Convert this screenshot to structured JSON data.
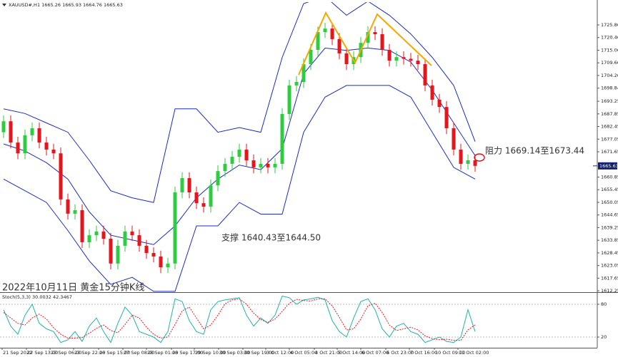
{
  "chart_data": [
    {
      "type": "candlestick",
      "title": "XAUUSD#,H1  1665.26 1665.93 1664.76 1665.63",
      "annotations": [
        "阻力 1669.14至1673.44",
        "支撑 1640.43至1644.50",
        "2022年10月11日 黄金15分钟K线"
      ],
      "x": [
        0,
        1,
        2,
        3,
        4,
        5,
        6,
        7,
        8,
        9,
        10,
        11,
        12,
        13,
        14,
        15,
        16,
        17,
        18,
        19,
        20,
        21,
        22,
        23,
        24,
        25,
        26,
        27,
        28,
        29,
        30,
        31,
        32,
        33,
        34,
        35,
        36,
        37,
        38,
        39,
        40,
        41,
        42,
        43,
        44,
        45,
        46,
        47,
        48,
        49,
        50,
        51,
        52,
        53,
        54,
        55,
        56,
        57,
        58,
        59,
        60,
        61,
        62,
        63,
        64,
        65,
        66
      ],
      "open": [
        1680,
        1684.7,
        1675.6,
        1671,
        1678.7,
        1681.7,
        1675.6,
        1672.6,
        1671,
        1651.3,
        1645.2,
        1646.7,
        1633,
        1636,
        1637.6,
        1634.5,
        1623.9,
        1631.5,
        1637.6,
        1636,
        1631.5,
        1628.4,
        1626.9,
        1622.3,
        1623.9,
        1654.3,
        1660.4,
        1654.3,
        1649.7,
        1648.2,
        1657.3,
        1663.4,
        1666.5,
        1669.5,
        1672.6,
        1668,
        1665,
        1666.5,
        1665,
        1666.5,
        1687.8,
        1700,
        1701.5,
        1709.1,
        1715.2,
        1722.8,
        1724.3,
        1719.8,
        1713.7,
        1709.1,
        1712.1,
        1718.2,
        1722.8,
        1721.9,
        1715.2,
        1710.6,
        1712.1,
        1711.4,
        1710.6,
        1709.1,
        1700,
        1693.9,
        1690.8,
        1681.7,
        1672.6,
        1666.5,
        1668
      ],
      "high": [
        1687.2,
        1687.2,
        1678.1,
        1681.2,
        1684.2,
        1684.2,
        1678.1,
        1675.1,
        1673.5,
        1653.8,
        1649.2,
        1649.2,
        1638.5,
        1640.1,
        1640.1,
        1637,
        1634,
        1640.1,
        1640.1,
        1638.5,
        1634,
        1630.9,
        1629.4,
        1626.4,
        1656.8,
        1662.9,
        1662.9,
        1656.8,
        1652.2,
        1659.8,
        1665.9,
        1669,
        1672,
        1675.1,
        1675.1,
        1670.5,
        1669,
        1669,
        1669,
        1690.3,
        1702.5,
        1704,
        1711.6,
        1717.7,
        1725.3,
        1726.8,
        1726.8,
        1722.3,
        1716.2,
        1714.6,
        1720.7,
        1725.3,
        1725.3,
        1724.4,
        1717.7,
        1714.6,
        1714.6,
        1713.9,
        1713.1,
        1711.6,
        1702.5,
        1696.4,
        1693.3,
        1684.2,
        1675.1,
        1670.5,
        1670.5
      ],
      "low": [
        1677.5,
        1673.1,
        1668.5,
        1668.5,
        1676.2,
        1673.1,
        1670.1,
        1668.5,
        1648.8,
        1642.7,
        1642.7,
        1630.5,
        1630.5,
        1633.5,
        1632,
        1621.4,
        1621.4,
        1629,
        1633.5,
        1629,
        1625.9,
        1624.4,
        1619.8,
        1619.8,
        1621.4,
        1651.8,
        1651.8,
        1647.2,
        1645.7,
        1645.7,
        1654.8,
        1660.9,
        1664,
        1667,
        1665.5,
        1662.5,
        1662.5,
        1662.5,
        1662.5,
        1664,
        1685.3,
        1697.5,
        1699,
        1706.6,
        1712.7,
        1720.3,
        1717.3,
        1711.2,
        1706.6,
        1706.6,
        1709.6,
        1715.7,
        1719.4,
        1712.7,
        1708.1,
        1708.1,
        1708.9,
        1708.1,
        1706.6,
        1697.5,
        1691.4,
        1688.3,
        1679.2,
        1670.1,
        1664,
        1664,
        1663.1
      ],
      "close": [
        1684.7,
        1675.6,
        1671,
        1678.7,
        1681.7,
        1675.6,
        1672.6,
        1671,
        1651.3,
        1645.2,
        1646.7,
        1633,
        1636,
        1637.6,
        1634.5,
        1623.9,
        1631.5,
        1637.6,
        1636,
        1631.5,
        1628.4,
        1626.9,
        1622.3,
        1623.9,
        1654.3,
        1660.4,
        1654.3,
        1649.7,
        1648.2,
        1657.3,
        1663.4,
        1666.5,
        1669.5,
        1672.6,
        1668,
        1665,
        1666.5,
        1665,
        1666.5,
        1687.8,
        1700,
        1701.5,
        1709.1,
        1715.2,
        1722.8,
        1724.3,
        1719.8,
        1713.7,
        1709.1,
        1712.1,
        1718.2,
        1722.8,
        1721.9,
        1715.2,
        1710.6,
        1712.1,
        1711.4,
        1710.6,
        1709.1,
        1700,
        1693.9,
        1690.8,
        1681.7,
        1672.6,
        1666.5,
        1668,
        1665.63
      ],
      "up_color": "#2ecc40",
      "down_color": "#e8141c",
      "band_x": [
        0,
        3,
        6,
        9,
        12,
        15,
        18,
        21,
        24,
        27,
        30,
        33,
        36,
        39,
        42,
        45,
        48,
        51,
        54,
        57,
        60,
        63,
        66
      ],
      "band_color": "#1a2cc4",
      "band_upper": [
        1690,
        1688,
        1684,
        1680,
        1668,
        1655,
        1652,
        1650,
        1690,
        1690,
        1680,
        1682,
        1680,
        1712,
        1735,
        1738,
        1730,
        1736,
        1730,
        1722,
        1712,
        1700,
        1676
      ],
      "band_middle": [
        1675,
        1672,
        1667,
        1660,
        1646,
        1636,
        1634,
        1632,
        1640,
        1652,
        1660,
        1666,
        1664,
        1673,
        1705,
        1716,
        1715,
        1716,
        1715,
        1710,
        1698,
        1684,
        1670
      ],
      "band_lower": [
        1660,
        1655,
        1650,
        1638,
        1625,
        1615,
        1618,
        1612,
        1612,
        1640,
        1640,
        1650,
        1645,
        1645,
        1680,
        1695,
        1700,
        1700,
        1700,
        1695,
        1680,
        1665,
        1660
      ],
      "xlim": [
        -0.5,
        83.1
      ],
      "ylim": [
        1611.67,
        1735.6
      ],
      "yticks": [
        1725.86,
        1720.46,
        1715.06,
        1709.66,
        1704.26,
        1698.84,
        1693.25,
        1687.85,
        1682.45,
        1677.05,
        1671.65,
        1660.85,
        1655.45,
        1650.05,
        1644.65,
        1639.25,
        1633.85,
        1628.45,
        1623.05,
        1617.65,
        1612.25
      ]
    },
    {
      "type": "line",
      "title": "Stoch(5,3,3) 30.0032 42.3467",
      "x": [
        0,
        1,
        2,
        3,
        4,
        5,
        6,
        7,
        8,
        9,
        10,
        11,
        12,
        13,
        14,
        15,
        16,
        17,
        18,
        19,
        20,
        21,
        22,
        23,
        24,
        25,
        26,
        27,
        28,
        29,
        30,
        31,
        32,
        33,
        34,
        35,
        36,
        37,
        38,
        39,
        40,
        41,
        42,
        43,
        44,
        45,
        46,
        47,
        48,
        49,
        50,
        51,
        52,
        53,
        54,
        55,
        56,
        57,
        58,
        59,
        60,
        61,
        62,
        63,
        64,
        65,
        66
      ],
      "series": [
        {
          "color": "#20b2aa",
          "dash": false,
          "values": [
            70,
            40,
            25,
            60,
            80,
            45,
            35,
            30,
            10,
            15,
            30,
            12,
            40,
            55,
            30,
            10,
            45,
            75,
            60,
            30,
            25,
            20,
            10,
            30,
            90,
            85,
            50,
            30,
            25,
            70,
            85,
            88,
            90,
            92,
            60,
            40,
            55,
            45,
            60,
            95,
            92,
            80,
            88,
            90,
            93,
            88,
            50,
            30,
            20,
            55,
            85,
            90,
            70,
            35,
            20,
            40,
            45,
            30,
            25,
            10,
            15,
            20,
            12,
            10,
            20,
            70,
            30.0032
          ]
        },
        {
          "color": "#e8141c",
          "dash": true,
          "values": [
            65,
            55,
            45,
            42,
            55,
            62,
            53,
            37,
            25,
            18,
            18,
            19,
            27,
            36,
            42,
            32,
            28,
            43,
            60,
            55,
            38,
            25,
            18,
            20,
            43,
            68,
            75,
            55,
            35,
            42,
            60,
            81,
            88,
            90,
            80,
            64,
            52,
            47,
            53,
            67,
            82,
            89,
            87,
            86,
            90,
            90,
            77,
            56,
            33,
            35,
            53,
            77,
            82,
            65,
            42,
            32,
            35,
            38,
            33,
            22,
            17,
            15,
            16,
            14,
            14,
            33,
            42.3467
          ]
        }
      ],
      "xlim": [
        -0.5,
        83.1
      ],
      "ylim": [
        0,
        100
      ],
      "yticks": [
        20,
        80
      ],
      "xticks": [
        {
          "value": -0.2,
          "label": "21 Sep 2022"
        },
        {
          "value": 3.2,
          "label": "22 Sep 13:00"
        },
        {
          "value": 6.5,
          "label": "23 Sep 06:00"
        },
        {
          "value": 9.8,
          "label": "23 Sep 22:00"
        },
        {
          "value": 13.3,
          "label": "26 Sep 15:00"
        },
        {
          "value": 16.7,
          "label": "27 Sep 08:00"
        },
        {
          "value": 20,
          "label": "28 Sep 01:00"
        },
        {
          "value": 23.5,
          "label": "28 Sep 17:00"
        },
        {
          "value": 26.7,
          "label": "29 Sep 10:00"
        },
        {
          "value": 30.1,
          "label": "30 Sep 03:00"
        },
        {
          "value": 33.5,
          "label": "30 Sep 19:00"
        },
        {
          "value": 36.7,
          "label": "3 Oct 12:00"
        },
        {
          "value": 40,
          "label": "4 Oct 05:00"
        },
        {
          "value": 43.5,
          "label": "4 Oct 21:00"
        },
        {
          "value": 46.7,
          "label": "5 Oct 14:00"
        },
        {
          "value": 50,
          "label": "6 Oct 07:00"
        },
        {
          "value": 53.5,
          "label": "6 Oct 23:00"
        },
        {
          "value": 56.8,
          "label": "7 Oct 16:00"
        },
        {
          "value": 60.3,
          "label": "10 Oct 09:00"
        },
        {
          "value": 63.6,
          "label": "11 Oct 02:00"
        }
      ]
    }
  ]
}
